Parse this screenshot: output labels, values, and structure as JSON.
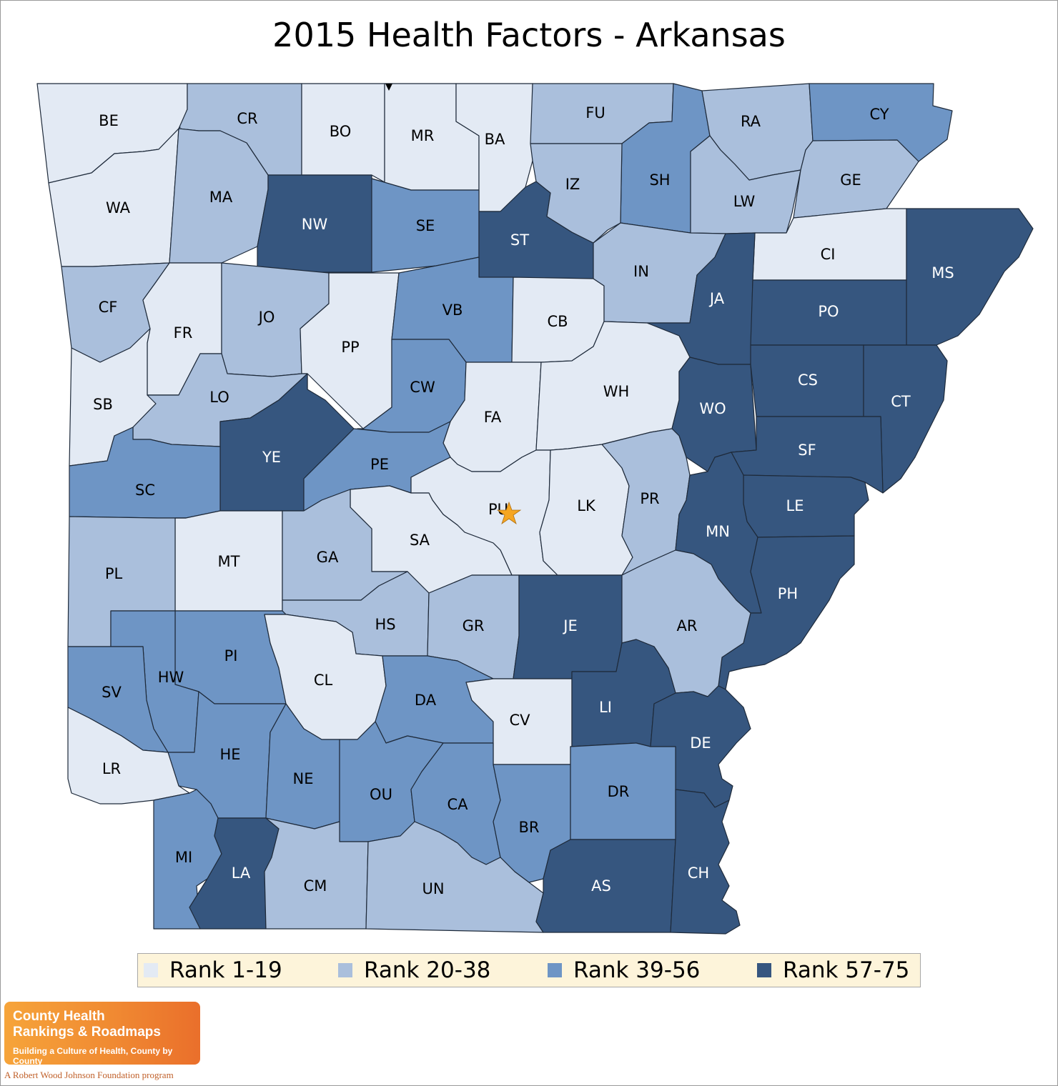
{
  "title": "2015 Health Factors - Arkansas",
  "colors": {
    "rank_1_19": "#e3eaf4",
    "rank_20_38": "#aabfdc",
    "rank_39_56": "#6e95c5",
    "rank_57_75": "#36567f",
    "border": "#1e2a3a",
    "legend_bg": "#fdf4da",
    "star": "#f5a623"
  },
  "legend": [
    {
      "label": "Rank 1-19",
      "cls": "rank_1_19"
    },
    {
      "label": "Rank 20-38",
      "cls": "rank_20_38"
    },
    {
      "label": "Rank 39-56",
      "cls": "rank_39_56"
    },
    {
      "label": "Rank 57-75",
      "cls": "rank_57_75"
    }
  ],
  "counties": [
    {
      "code": "BE",
      "cls": "rank_1_19"
    },
    {
      "code": "CR",
      "cls": "rank_20_38"
    },
    {
      "code": "BO",
      "cls": "rank_1_19"
    },
    {
      "code": "MR",
      "cls": "rank_1_19"
    },
    {
      "code": "BA",
      "cls": "rank_1_19"
    },
    {
      "code": "FU",
      "cls": "rank_20_38"
    },
    {
      "code": "SH",
      "cls": "rank_39_56"
    },
    {
      "code": "RA",
      "cls": "rank_20_38"
    },
    {
      "code": "CY",
      "cls": "rank_39_56"
    },
    {
      "code": "WA",
      "cls": "rank_1_19"
    },
    {
      "code": "MA",
      "cls": "rank_20_38"
    },
    {
      "code": "NW",
      "cls": "rank_57_75"
    },
    {
      "code": "SE",
      "cls": "rank_39_56"
    },
    {
      "code": "ST",
      "cls": "rank_57_75"
    },
    {
      "code": "IZ",
      "cls": "rank_20_38"
    },
    {
      "code": "LW",
      "cls": "rank_20_38"
    },
    {
      "code": "GE",
      "cls": "rank_20_38"
    },
    {
      "code": "CI",
      "cls": "rank_1_19"
    },
    {
      "code": "MS",
      "cls": "rank_57_75"
    },
    {
      "code": "CF",
      "cls": "rank_20_38"
    },
    {
      "code": "FR",
      "cls": "rank_1_19"
    },
    {
      "code": "JO",
      "cls": "rank_20_38"
    },
    {
      "code": "PP",
      "cls": "rank_1_19"
    },
    {
      "code": "VB",
      "cls": "rank_39_56"
    },
    {
      "code": "CB",
      "cls": "rank_1_19"
    },
    {
      "code": "IN",
      "cls": "rank_20_38"
    },
    {
      "code": "JA",
      "cls": "rank_57_75"
    },
    {
      "code": "PO",
      "cls": "rank_57_75"
    },
    {
      "code": "SB",
      "cls": "rank_1_19"
    },
    {
      "code": "LO",
      "cls": "rank_20_38"
    },
    {
      "code": "CW",
      "cls": "rank_39_56"
    },
    {
      "code": "FA",
      "cls": "rank_1_19"
    },
    {
      "code": "WH",
      "cls": "rank_1_19"
    },
    {
      "code": "WO",
      "cls": "rank_57_75"
    },
    {
      "code": "CS",
      "cls": "rank_57_75"
    },
    {
      "code": "CT",
      "cls": "rank_57_75"
    },
    {
      "code": "YE",
      "cls": "rank_57_75"
    },
    {
      "code": "SC",
      "cls": "rank_39_56"
    },
    {
      "code": "PE",
      "cls": "rank_39_56"
    },
    {
      "code": "SF",
      "cls": "rank_57_75"
    },
    {
      "code": "PU",
      "cls": "rank_1_19"
    },
    {
      "code": "LK",
      "cls": "rank_1_19"
    },
    {
      "code": "PR",
      "cls": "rank_20_38"
    },
    {
      "code": "LE",
      "cls": "rank_57_75"
    },
    {
      "code": "MN",
      "cls": "rank_57_75"
    },
    {
      "code": "SA",
      "cls": "rank_1_19"
    },
    {
      "code": "MT",
      "cls": "rank_1_19"
    },
    {
      "code": "GA",
      "cls": "rank_20_38"
    },
    {
      "code": "PL",
      "cls": "rank_20_38"
    },
    {
      "code": "PH",
      "cls": "rank_57_75"
    },
    {
      "code": "HS",
      "cls": "rank_20_38"
    },
    {
      "code": "GR",
      "cls": "rank_20_38"
    },
    {
      "code": "JE",
      "cls": "rank_57_75"
    },
    {
      "code": "AR",
      "cls": "rank_20_38"
    },
    {
      "code": "PI",
      "cls": "rank_39_56"
    },
    {
      "code": "HW",
      "cls": "rank_39_56"
    },
    {
      "code": "SV",
      "cls": "rank_39_56"
    },
    {
      "code": "CL",
      "cls": "rank_1_19"
    },
    {
      "code": "DA",
      "cls": "rank_39_56"
    },
    {
      "code": "CV",
      "cls": "rank_1_19"
    },
    {
      "code": "LI",
      "cls": "rank_57_75"
    },
    {
      "code": "DE",
      "cls": "rank_57_75"
    },
    {
      "code": "HE",
      "cls": "rank_39_56"
    },
    {
      "code": "LR",
      "cls": "rank_1_19"
    },
    {
      "code": "NE",
      "cls": "rank_39_56"
    },
    {
      "code": "OU",
      "cls": "rank_39_56"
    },
    {
      "code": "CA",
      "cls": "rank_39_56"
    },
    {
      "code": "BR",
      "cls": "rank_39_56"
    },
    {
      "code": "DR",
      "cls": "rank_39_56"
    },
    {
      "code": "MI",
      "cls": "rank_39_56"
    },
    {
      "code": "LA",
      "cls": "rank_57_75"
    },
    {
      "code": "CM",
      "cls": "rank_20_38"
    },
    {
      "code": "UN",
      "cls": "rank_20_38"
    },
    {
      "code": "AS",
      "cls": "rank_57_75"
    },
    {
      "code": "CH",
      "cls": "rank_57_75"
    }
  ],
  "logo": {
    "line1": "County Health",
    "line2": "Rankings & Roadmaps",
    "tagline": "Building a Culture of Health, County by County",
    "sub": "A Robert Wood Johnson Foundation program"
  }
}
